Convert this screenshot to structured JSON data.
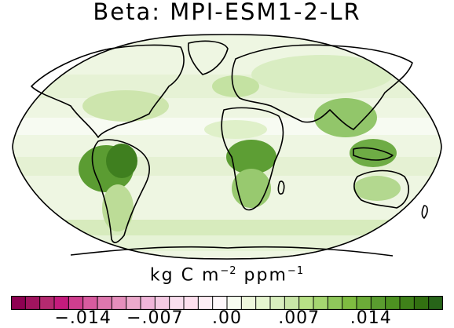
{
  "title": "Beta: MPI-ESM1-2-LR",
  "units": {
    "text": "kg C m",
    "exp1": "−2",
    "text2": "ppm",
    "exp2": "−1"
  },
  "colorbar": {
    "min": -0.021,
    "max": 0.021,
    "tick_labels": [
      "−.014",
      "−.007",
      ".00",
      ".007",
      ".014"
    ],
    "tick_values": [
      -0.014,
      -0.007,
      0.0,
      0.007,
      0.014
    ],
    "colors": [
      "#8e0152",
      "#a1145f",
      "#b42a70",
      "#c51b7d",
      "#cf3e8e",
      "#d85b9f",
      "#de77ae",
      "#e58fbc",
      "#ecaacc",
      "#f1b6da",
      "#f5cbe4",
      "#f9deee",
      "#fde0ef",
      "#fdedf4",
      "#fef7fa",
      "#f7fcf0",
      "#eef7dc",
      "#e6f5d0",
      "#d9efbf",
      "#c9e6a8",
      "#b8e186",
      "#a6d671",
      "#8fc75b",
      "#7fbc41",
      "#6cac38",
      "#5a9c2f",
      "#4d9221",
      "#3f8119",
      "#327011",
      "#276419"
    ]
  }
}
